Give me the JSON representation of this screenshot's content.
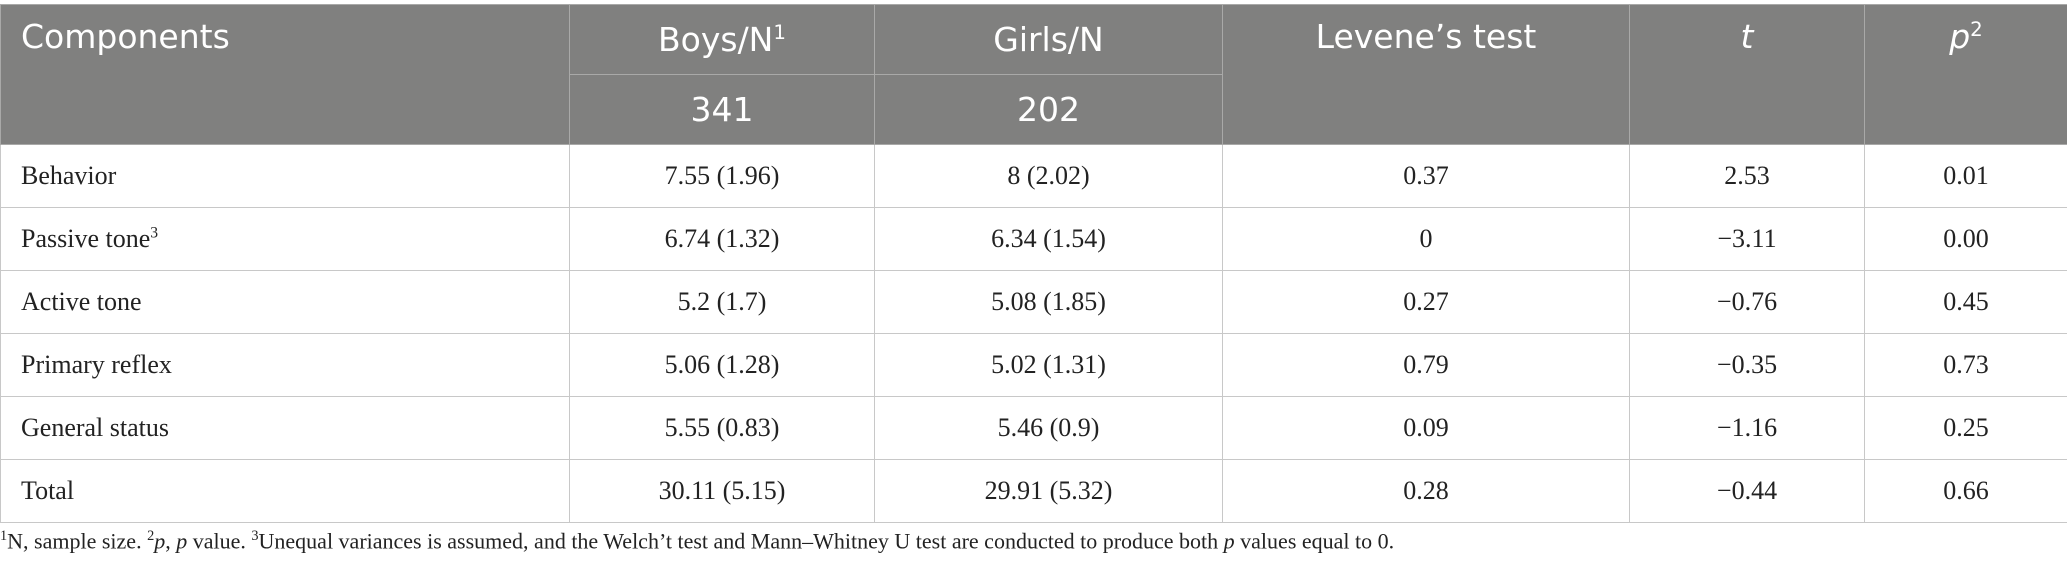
{
  "table": {
    "header": {
      "components": "Components",
      "boys": "Boys/N",
      "boys_sup": "1",
      "girls": "Girls/N",
      "levene": "Levene’s test",
      "t": "t",
      "p": "p",
      "p_sup": "2",
      "boys_n": "341",
      "girls_n": "202"
    },
    "rows": [
      {
        "label": "Behavior",
        "cells": [
          "7.55 (1.96)",
          "8 (2.02)",
          "0.37",
          "2.53",
          "0.01"
        ]
      },
      {
        "label": "Passive tone",
        "label_sup": "3",
        "cells": [
          "6.74 (1.32)",
          "6.34 (1.54)",
          "0",
          "−3.11",
          "0.00"
        ]
      },
      {
        "label": "Active tone",
        "cells": [
          "5.2 (1.7)",
          "5.08 (1.85)",
          "0.27",
          "−0.76",
          "0.45"
        ]
      },
      {
        "label": "Primary reflex",
        "cells": [
          "5.06 (1.28)",
          "5.02 (1.31)",
          "0.79",
          "−0.35",
          "0.73"
        ]
      },
      {
        "label": "General status",
        "cells": [
          "5.55 (0.83)",
          "5.46 (0.9)",
          "0.09",
          "−1.16",
          "0.25"
        ]
      },
      {
        "label": "Total",
        "cells": [
          "30.11 (5.15)",
          "29.91 (5.32)",
          "0.28",
          "−0.44",
          "0.66"
        ]
      }
    ]
  },
  "footnote": [
    "1",
    "N, sample size. ",
    "2",
    "p",
    ", ",
    "p",
    " value. ",
    "3",
    "Unequal variances is assumed, and the Welch’t test and Mann–Whitney U test are conducted to produce both ",
    "p",
    " values equal to 0."
  ]
}
